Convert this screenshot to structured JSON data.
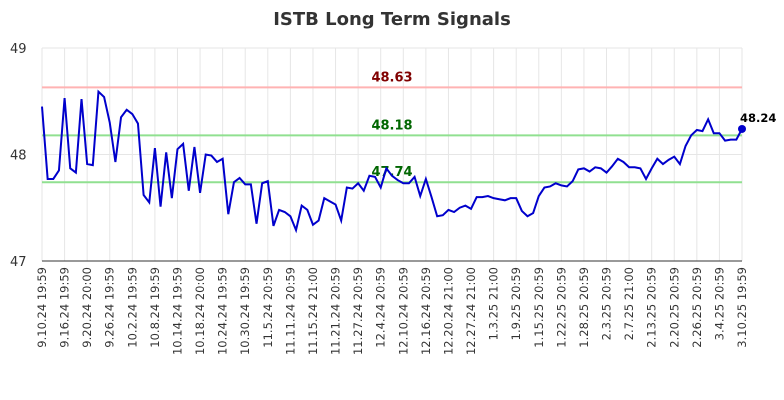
{
  "chart_data": {
    "type": "line",
    "title": "ISTB Long Term Signals",
    "categories": [
      "9.10.24 19:59",
      null,
      null,
      null,
      "9.16.24 19:59",
      null,
      null,
      null,
      "9.20.24 20:00",
      null,
      null,
      null,
      "9.26.24 19:59",
      null,
      null,
      null,
      "10.2.24 19:59",
      null,
      null,
      null,
      "10.8.24 19:59",
      null,
      null,
      null,
      "10.14.24 19:59",
      null,
      null,
      null,
      "10.18.24 20:00",
      null,
      null,
      null,
      "10.24.24 19:59",
      null,
      null,
      null,
      "10.30.24 19:59",
      null,
      null,
      null,
      "11.5.24 20:59",
      null,
      null,
      null,
      "11.11.24 20:59",
      null,
      null,
      null,
      "11.15.24 21:00",
      null,
      null,
      null,
      "11.21.24 20:59",
      null,
      null,
      null,
      "11.27.24 20:59",
      null,
      null,
      null,
      "12.4.24 20:59",
      null,
      null,
      null,
      "12.10.24 20:59",
      null,
      null,
      null,
      "12.16.24 20:59",
      null,
      null,
      null,
      "12.20.24 21:00",
      null,
      null,
      null,
      "12.27.24 21:00",
      null,
      null,
      null,
      "1.3.25 21:00",
      null,
      null,
      null,
      "1.9.25 20:59",
      null,
      null,
      null,
      "1.15.25 20:59",
      null,
      null,
      null,
      "1.22.25 20:59",
      null,
      null,
      null,
      "1.28.25 20:59",
      null,
      null,
      null,
      "2.3.25 20:59",
      null,
      null,
      null,
      "2.7.25 21:00",
      null,
      null,
      null,
      "2.13.25 20:59",
      null,
      null,
      null,
      "2.20.25 20:59",
      null,
      null,
      null,
      "2.26.25 20:59",
      null,
      null,
      null,
      "3.4.25 20:59",
      null,
      null,
      null,
      "3.10.25 19:59"
    ],
    "series": [
      {
        "color": "#0000cc",
        "values": [
          48.45,
          47.77,
          47.77,
          47.85,
          48.53,
          47.87,
          47.83,
          48.52,
          47.91,
          47.9,
          48.59,
          48.54,
          48.3,
          47.93,
          48.35,
          48.42,
          48.38,
          48.29,
          47.62,
          47.55,
          48.06,
          47.51,
          48.02,
          47.59,
          48.05,
          48.1,
          47.66,
          48.07,
          47.64,
          48.0,
          47.99,
          47.93,
          47.96,
          47.44,
          47.74,
          47.78,
          47.72,
          47.72,
          47.35,
          47.73,
          47.75,
          47.33,
          47.48,
          47.46,
          47.42,
          47.29,
          47.52,
          47.48,
          47.34,
          47.38,
          47.59,
          47.56,
          47.53,
          47.38,
          47.69,
          47.68,
          47.73,
          47.66,
          47.8,
          47.79,
          47.69,
          47.87,
          47.8,
          47.76,
          47.73,
          47.73,
          47.79,
          47.61,
          47.77,
          47.6,
          47.42,
          47.43,
          47.48,
          47.46,
          47.5,
          47.52,
          47.49,
          47.6,
          47.6,
          47.61,
          47.59,
          47.58,
          47.57,
          47.59,
          47.59,
          47.47,
          47.42,
          47.45,
          47.61,
          47.69,
          47.7,
          47.73,
          47.71,
          47.7,
          47.75,
          47.86,
          47.87,
          47.84,
          47.88,
          47.87,
          47.83,
          47.89,
          47.96,
          47.93,
          47.88,
          47.88,
          47.87,
          47.77,
          47.87,
          47.96,
          47.91,
          47.95,
          47.98,
          47.91,
          48.08,
          48.18,
          48.23,
          48.22,
          48.33,
          48.2,
          48.2,
          48.13,
          48.14,
          48.14,
          48.24
        ]
      }
    ],
    "reference_lines": [
      {
        "value": 48.63,
        "color": "#ffb3b3",
        "label_color": "#800000"
      },
      {
        "value": 48.18,
        "color": "#90e090",
        "label_color": "#006600"
      },
      {
        "value": 47.74,
        "color": "#90e090",
        "label_color": "#006600"
      }
    ],
    "ylim": [
      47,
      49
    ],
    "yticks": [
      47,
      48,
      49
    ],
    "grid": true
  }
}
